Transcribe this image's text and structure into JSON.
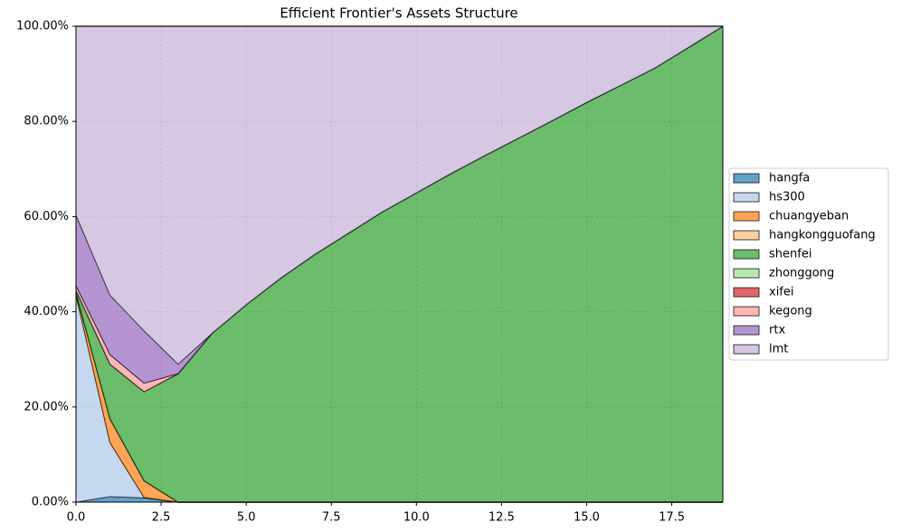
{
  "chart_data": {
    "type": "stacked_area",
    "title": "Efficient Frontier's Assets Structure",
    "x": [
      0,
      1,
      2,
      3,
      4,
      5,
      6,
      7,
      8,
      9,
      10,
      11,
      12,
      13,
      14,
      15,
      16,
      17,
      18,
      19
    ],
    "series": [
      {
        "name": "hangfa",
        "color": "#1f77b4",
        "values": [
          0,
          1.2,
          0.9,
          0,
          0,
          0,
          0,
          0,
          0,
          0,
          0,
          0,
          0,
          0,
          0,
          0,
          0,
          0,
          0,
          0
        ]
      },
      {
        "name": "hs300",
        "color": "#aec7e8",
        "values": [
          43.5,
          11.3,
          0.1,
          0,
          0,
          0,
          0,
          0,
          0,
          0,
          0,
          0,
          0,
          0,
          0,
          0,
          0,
          0,
          0,
          0
        ]
      },
      {
        "name": "chuangyeban",
        "color": "#ff7f0e",
        "values": [
          0.5,
          5,
          3.5,
          0,
          0,
          0,
          0,
          0,
          0,
          0,
          0,
          0,
          0,
          0,
          0,
          0,
          0,
          0,
          0,
          0
        ]
      },
      {
        "name": "hangkongguofang",
        "color": "#ffbb78",
        "values": [
          0,
          0,
          0,
          0,
          0,
          0,
          0,
          0,
          0,
          0,
          0,
          0,
          0,
          0,
          0,
          0,
          0,
          0,
          0,
          0
        ]
      },
      {
        "name": "shenfei",
        "color": "#2ca02c",
        "values": [
          0.5,
          11.5,
          18.7,
          27,
          35.5,
          41.5,
          47,
          52,
          56.5,
          61,
          65,
          69,
          72.8,
          76.5,
          80.2,
          84,
          87.6,
          91.2,
          95.6,
          100
        ]
      },
      {
        "name": "zhonggong",
        "color": "#98df8a",
        "values": [
          0,
          0,
          0,
          0,
          0,
          0,
          0,
          0,
          0,
          0,
          0,
          0,
          0,
          0,
          0,
          0,
          0,
          0,
          0,
          0
        ]
      },
      {
        "name": "xifei",
        "color": "#d62728",
        "values": [
          0,
          0,
          0,
          0,
          0,
          0,
          0,
          0,
          0,
          0,
          0,
          0,
          0,
          0,
          0,
          0,
          0,
          0,
          0,
          0
        ]
      },
      {
        "name": "kegong",
        "color": "#ff9896",
        "values": [
          1,
          2,
          1.8,
          0,
          0,
          0,
          0,
          0,
          0,
          0,
          0,
          0,
          0,
          0,
          0,
          0,
          0,
          0,
          0,
          0
        ]
      },
      {
        "name": "rtx",
        "color": "#9467bd",
        "values": [
          14.8,
          12.5,
          11,
          2,
          0,
          0,
          0,
          0,
          0,
          0,
          0,
          0,
          0,
          0,
          0,
          0,
          0,
          0,
          0,
          0
        ]
      },
      {
        "name": "lmt",
        "color": "#c5b0d5",
        "values": [
          39.7,
          56.5,
          64,
          71,
          64.5,
          58.5,
          53,
          48,
          43.5,
          39,
          35,
          31,
          27.2,
          23.5,
          19.8,
          16,
          12.4,
          8.8,
          4.4,
          0
        ]
      }
    ],
    "xlim": [
      0,
      19
    ],
    "xticks": [
      {
        "value": 0,
        "label": "0.0"
      },
      2.5,
      {
        "value": 5,
        "label": "5.0"
      },
      7.5,
      {
        "value": 10,
        "label": "10.0"
      },
      12.5,
      {
        "value": 15,
        "label": "15.0"
      },
      17.5
    ],
    "ylim": [
      0,
      100
    ],
    "yticks": [
      {
        "value": 0,
        "label": "0.00%"
      },
      {
        "value": 20,
        "label": "20.00%"
      },
      {
        "value": 40,
        "label": "40.00%"
      },
      {
        "value": 60,
        "label": "60.00%"
      },
      {
        "value": 80,
        "label": "80.00%"
      },
      {
        "value": 100,
        "label": "100.00%"
      }
    ],
    "grid": true,
    "legend": "right"
  }
}
